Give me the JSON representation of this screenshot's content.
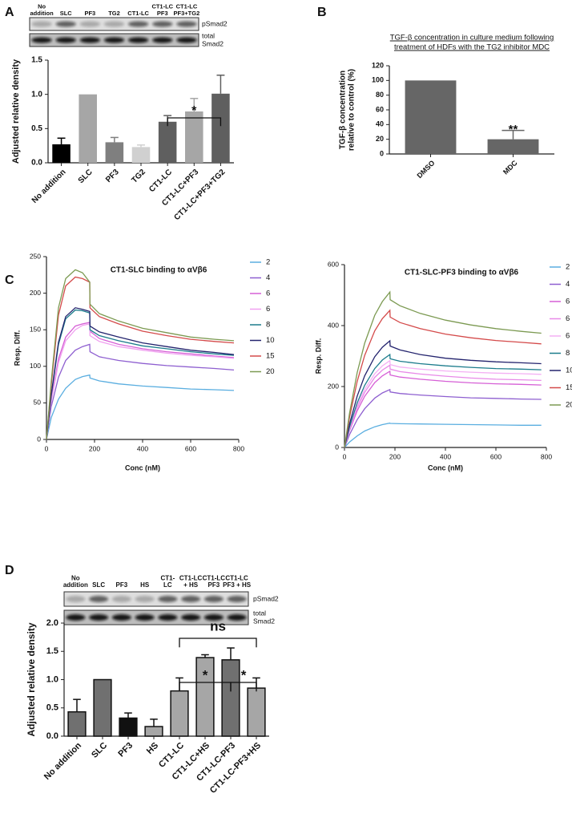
{
  "panels": [
    "A",
    "B",
    "C",
    "D"
  ],
  "blots": [
    {
      "lanes": [
        [
          "No",
          "addition"
        ],
        [
          "SLC"
        ],
        [
          "PF3"
        ],
        [
          "TG2"
        ],
        [
          "CT1-LC"
        ],
        [
          "CT1-LC",
          "PF3"
        ],
        [
          "CT1-LC",
          "PF3+TG2"
        ]
      ],
      "bands": [
        [
          "pSmad2"
        ],
        [
          "total",
          "Smad2"
        ]
      ]
    },
    {
      "lanes": [
        [
          "No",
          "addition"
        ],
        [
          "SLC"
        ],
        [
          "PF3"
        ],
        [
          "HS"
        ],
        [
          "CT1-",
          "LC"
        ],
        [
          "CT1-LC",
          "+ HS"
        ],
        [
          "CT1-LC",
          "PF3"
        ],
        [
          "CT1-LC",
          "PF3 + HS"
        ]
      ],
      "bands": [
        [
          "pSmad2"
        ],
        [
          "total",
          "Smad2"
        ]
      ]
    }
  ],
  "chart_data": [
    {
      "type": "bar",
      "ylabel": [
        "Adjusted relative density"
      ],
      "categories": [
        "No addition",
        "SLC",
        "PF3",
        "TG2",
        "CT1-LC",
        "CT1-LC+PF3",
        "CT1-LC+PF3+TG2"
      ],
      "values": [
        0.27,
        1.0,
        0.3,
        0.23,
        0.6,
        0.75,
        1.01
      ],
      "errors": [
        0.09,
        0,
        0.07,
        0.03,
        0.09,
        0.19,
        0.27
      ],
      "colors": [
        "#000000",
        "#a6a6a6",
        "#7f7f7f",
        "#d0d0d0",
        "#5f5f5f",
        "#a6a6a6",
        "#5f5f5f"
      ],
      "ylim": [
        0,
        1.5
      ],
      "yticks": [
        {
          "value": 0,
          "label": "0.0"
        },
        0.5,
        {
          "value": 1,
          "label": "1.0"
        },
        1.5
      ],
      "annotations": [
        "*"
      ]
    },
    {
      "type": "bar",
      "title": [
        "TGF-β concentration in culture medium following",
        "treatment of HDFs with the TG2 inhibitor MDC"
      ],
      "ylabel": [
        "TGF-β concentration",
        "relative to control (%)"
      ],
      "categories": [
        "DMSO",
        "MDC"
      ],
      "values": [
        100,
        20
      ],
      "errors": [
        0,
        12
      ],
      "colors": [
        "#666666",
        "#666666"
      ],
      "ylim": [
        0,
        120
      ],
      "yticks": [
        0,
        20,
        40,
        60,
        80,
        100,
        120
      ],
      "annotations": [
        "**"
      ]
    },
    {
      "type": "line",
      "title": "CT1-SLC binding to αVβ6",
      "xlabel": "Conc (nM)",
      "ylabel": [
        "Resp. Diff."
      ],
      "x": [
        0,
        20,
        50,
        80,
        120,
        150,
        180,
        181,
        220,
        300,
        400,
        500,
        600,
        700,
        780
      ],
      "xlim": [
        0,
        800
      ],
      "xticks": [
        0,
        200,
        400,
        600,
        800
      ],
      "ylim": [
        0,
        250
      ],
      "yticks": [
        0,
        50,
        100,
        150,
        200,
        250
      ],
      "series": [
        {
          "name": "2",
          "color": "#5aaee0",
          "values": [
            0,
            30,
            55,
            70,
            82,
            86,
            88,
            84,
            80,
            76,
            73,
            71,
            69,
            68,
            67
          ]
        },
        {
          "name": "4",
          "color": "#8e5fd0",
          "values": [
            0,
            45,
            85,
            108,
            122,
            127,
            130,
            120,
            113,
            108,
            104,
            101,
            99,
            97,
            95
          ]
        },
        {
          "name": "6",
          "color": "#d65fd6",
          "values": [
            0,
            55,
            110,
            140,
            155,
            158,
            160,
            148,
            138,
            130,
            124,
            120,
            117,
            114,
            112
          ]
        },
        {
          "name": "6",
          "color": "#f0a0f0",
          "values": [
            0,
            52,
            105,
            135,
            150,
            156,
            158,
            142,
            134,
            127,
            122,
            118,
            115,
            113,
            111
          ]
        },
        {
          "name": "8",
          "color": "#1c7c8c",
          "values": [
            0,
            60,
            130,
            165,
            177,
            176,
            173,
            150,
            142,
            135,
            128,
            124,
            120,
            117,
            115
          ]
        },
        {
          "name": "10",
          "color": "#24246e",
          "values": [
            0,
            62,
            133,
            168,
            180,
            178,
            175,
            155,
            147,
            140,
            132,
            127,
            122,
            119,
            116
          ]
        },
        {
          "name": "15",
          "color": "#d44a4a",
          "values": [
            0,
            75,
            170,
            210,
            222,
            220,
            215,
            180,
            168,
            158,
            148,
            142,
            137,
            134,
            132
          ]
        },
        {
          "name": "20",
          "color": "#7c9a52",
          "values": [
            0,
            80,
            180,
            220,
            232,
            228,
            215,
            185,
            172,
            162,
            152,
            146,
            140,
            137,
            135
          ]
        }
      ]
    },
    {
      "type": "line",
      "title": "CT1-SLC-PF3 binding to αVβ6",
      "xlabel": "Conc (nM)",
      "ylabel": [
        "Resp. Diff."
      ],
      "x": [
        0,
        20,
        50,
        80,
        120,
        150,
        180,
        181,
        220,
        300,
        400,
        500,
        600,
        700,
        780
      ],
      "xlim": [
        0,
        800
      ],
      "xticks": [
        0,
        200,
        400,
        600,
        800
      ],
      "ylim": [
        0,
        600
      ],
      "yticks": [
        0,
        200,
        400,
        600
      ],
      "series": [
        {
          "name": "2",
          "color": "#5aaee0",
          "values": [
            0,
            18,
            38,
            54,
            68,
            75,
            80,
            79,
            78,
            77,
            76,
            75,
            74,
            73,
            73
          ]
        },
        {
          "name": "4",
          "color": "#8e5fd0",
          "values": [
            0,
            42,
            91,
            127,
            162,
            179,
            190,
            182,
            177,
            172,
            167,
            163,
            161,
            159,
            158
          ]
        },
        {
          "name": "6",
          "color": "#d65fd6",
          "values": [
            0,
            55,
            120,
            168,
            213,
            235,
            250,
            238,
            231,
            224,
            217,
            212,
            209,
            207,
            205
          ]
        },
        {
          "name": "6",
          "color": "#e88ae8",
          "values": [
            0,
            59,
            130,
            181,
            230,
            254,
            270,
            257,
            249,
            241,
            234,
            228,
            224,
            222,
            220
          ]
        },
        {
          "name": "6",
          "color": "#f4b0f4",
          "values": [
            0,
            63,
            137,
            191,
            242,
            268,
            285,
            272,
            264,
            257,
            251,
            247,
            244,
            242,
            240
          ]
        },
        {
          "name": "8",
          "color": "#1c7c8c",
          "values": [
            0,
            67,
            146,
            204,
            259,
            287,
            305,
            291,
            283,
            275,
            268,
            263,
            259,
            257,
            255
          ]
        },
        {
          "name": "10",
          "color": "#24246e",
          "values": [
            0,
            77,
            168,
            235,
            298,
            329,
            350,
            333,
            320,
            305,
            293,
            286,
            281,
            278,
            275
          ]
        },
        {
          "name": "15",
          "color": "#d44a4a",
          "values": [
            0,
            99,
            216,
            302,
            383,
            423,
            450,
            428,
            410,
            390,
            372,
            360,
            351,
            345,
            340
          ]
        },
        {
          "name": "20",
          "color": "#7c9a52",
          "values": [
            0,
            112,
            245,
            342,
            434,
            479,
            510,
            485,
            465,
            440,
            418,
            402,
            390,
            381,
            375
          ]
        }
      ]
    },
    {
      "type": "bar",
      "ylabel": [
        "Adjusted relative density"
      ],
      "categories": [
        "No addition",
        "SLC",
        "PF3",
        "HS",
        "CT1-LC",
        "CT1-LC+HS",
        "CT1-LC-PF3",
        "CT1-LC-PF3+HS"
      ],
      "values": [
        0.43,
        1.0,
        0.32,
        0.17,
        0.8,
        1.39,
        1.35,
        0.85
      ],
      "errors": [
        0.22,
        0,
        0.09,
        0.13,
        0.23,
        0.05,
        0.21,
        0.18
      ],
      "colors": [
        "#707070",
        "#707070",
        "#111111",
        "#a6a6a6",
        "#a6a6a6",
        "#a6a6a6",
        "#707070",
        "#a6a6a6"
      ],
      "bar_outline": true,
      "ylim": [
        0,
        2
      ],
      "yticks": [
        {
          "value": 0,
          "label": "0.0"
        },
        0.5,
        {
          "value": 1,
          "label": "1.0"
        },
        1.5,
        {
          "value": 2,
          "label": "2.0"
        }
      ],
      "annotations": [
        "*",
        "*",
        "ns"
      ]
    }
  ]
}
